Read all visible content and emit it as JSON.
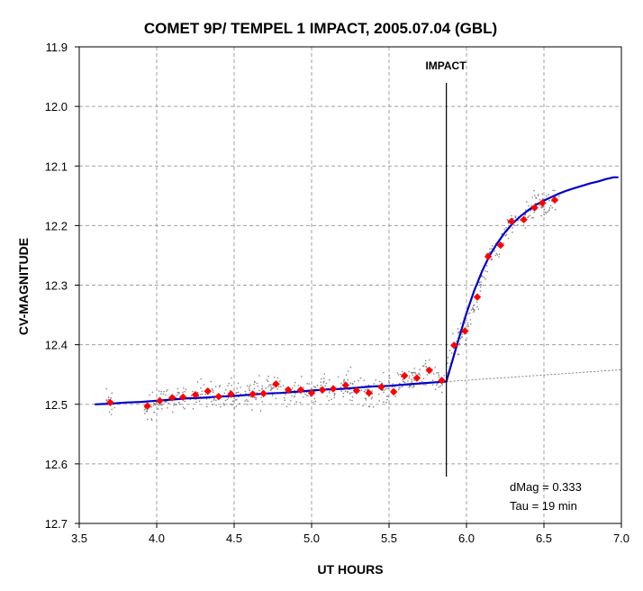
{
  "chart_data": {
    "type": "scatter",
    "title": "COMET 9P/ TEMPEL 1 IMPACT, 2005.07.04 (GBL)",
    "xlabel": "UT HOURS",
    "ylabel": "CV-MAGNITUDE",
    "xlim": [
      3.5,
      7.0
    ],
    "ylim": [
      12.7,
      11.9
    ],
    "y_axis_inverted": true,
    "x_ticks": [
      "3.5",
      "4.0",
      "4.5",
      "5.0",
      "5.5",
      "6.0",
      "6.5",
      "7.0"
    ],
    "y_ticks": [
      "11.9",
      "12.0",
      "12.1",
      "12.2",
      "12.3",
      "12.4",
      "12.5",
      "12.6",
      "12.7"
    ],
    "grid": true,
    "annotations": {
      "impact_label": "IMPACT",
      "impact_x": 5.87,
      "dmag_text": "dMag = 0.333",
      "tau_text": "Tau = 19 min"
    },
    "colors": {
      "binned_points": "#ff0000",
      "raw_points": "#808080",
      "model_fit": "#0000cc",
      "baseline_extension": "#808080",
      "impact_line": "#000000"
    },
    "series": [
      {
        "type": "scatter",
        "style": "red-diamond",
        "x": [
          3.7,
          3.94,
          4.02,
          4.1,
          4.17,
          4.25,
          4.33,
          4.4,
          4.48,
          4.62,
          4.69,
          4.77,
          4.85,
          4.93,
          5.0,
          5.07,
          5.14,
          5.22,
          5.29,
          5.37,
          5.45,
          5.53,
          5.6,
          5.68,
          5.76,
          5.84,
          5.92,
          5.99,
          6.07,
          6.14,
          6.22,
          6.29,
          6.37,
          6.44,
          6.49,
          6.57
        ],
        "y": [
          12.497,
          12.503,
          12.494,
          12.489,
          12.488,
          12.484,
          12.478,
          12.487,
          12.483,
          12.483,
          12.482,
          12.466,
          12.476,
          12.476,
          12.481,
          12.476,
          12.474,
          12.468,
          12.477,
          12.481,
          12.471,
          12.479,
          12.452,
          12.456,
          12.443,
          12.46,
          12.401,
          12.377,
          12.32,
          12.252,
          12.233,
          12.193,
          12.19,
          12.17,
          12.162,
          12.157
        ]
      },
      {
        "type": "line",
        "style": "model-fit",
        "x": [
          3.6,
          3.7,
          3.8,
          3.9,
          4.0,
          4.1,
          4.2,
          4.3,
          4.4,
          4.5,
          4.6,
          4.7,
          4.8,
          4.9,
          5.0,
          5.1,
          5.2,
          5.3,
          5.4,
          5.5,
          5.6,
          5.7,
          5.8,
          5.87,
          5.95,
          6.0,
          6.05,
          6.1,
          6.15,
          6.2,
          6.25,
          6.3,
          6.35,
          6.4,
          6.45,
          6.5,
          6.55,
          6.6,
          6.65,
          6.7,
          6.75,
          6.8,
          6.85,
          6.9,
          6.95,
          6.98
        ],
        "y": [
          12.5,
          12.499,
          12.497,
          12.496,
          12.494,
          12.492,
          12.49,
          12.489,
          12.487,
          12.486,
          12.484,
          12.482,
          12.481,
          12.479,
          12.477,
          12.475,
          12.474,
          12.472,
          12.47,
          12.469,
          12.467,
          12.465,
          12.463,
          12.462,
          12.39,
          12.347,
          12.309,
          12.277,
          12.25,
          12.229,
          12.211,
          12.196,
          12.184,
          12.174,
          12.165,
          12.158,
          12.152,
          12.146,
          12.141,
          12.137,
          12.133,
          12.129,
          12.126,
          12.122,
          12.119,
          12.119
        ]
      },
      {
        "type": "line",
        "style": "baseline-extension",
        "x": [
          5.87,
          7.0
        ],
        "y": [
          12.462,
          12.442
        ]
      }
    ]
  }
}
